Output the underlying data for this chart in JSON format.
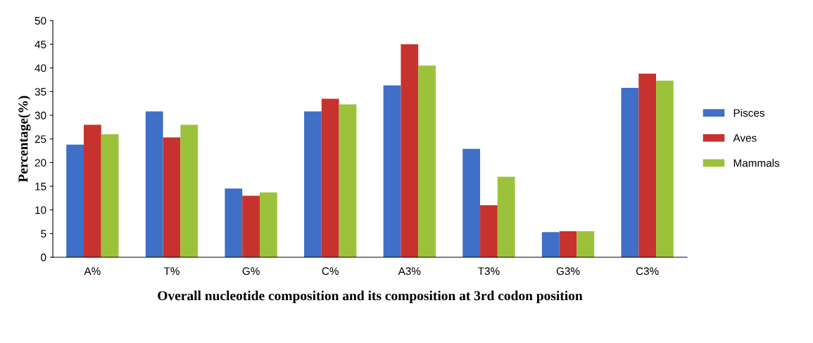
{
  "chart_data": {
    "type": "bar",
    "xlabel": "Overall nucleotide composition and its composition at 3rd codon position",
    "ylabel": "Percentage(%)",
    "categories": [
      "A%",
      "T%",
      "G%",
      "C%",
      "A3%",
      "T3%",
      "G3%",
      "C3%"
    ],
    "series": [
      {
        "name": "Pisces",
        "color": "#3f6fc6",
        "values": [
          23.8,
          30.8,
          14.5,
          30.8,
          36.3,
          22.9,
          5.3,
          35.8
        ]
      },
      {
        "name": "Aves",
        "color": "#c8322e",
        "values": [
          28,
          25.3,
          13,
          33.5,
          45,
          11,
          5.5,
          38.8
        ]
      },
      {
        "name": "Mammals",
        "color": "#9cc23c",
        "values": [
          26,
          28,
          13.7,
          32.3,
          40.5,
          17,
          5.5,
          37.3
        ]
      }
    ],
    "ylim": [
      0,
      50
    ],
    "yticks": [
      0,
      5,
      10,
      15,
      20,
      25,
      30,
      35,
      40,
      45,
      50
    ],
    "grid": false,
    "legend": "right"
  }
}
